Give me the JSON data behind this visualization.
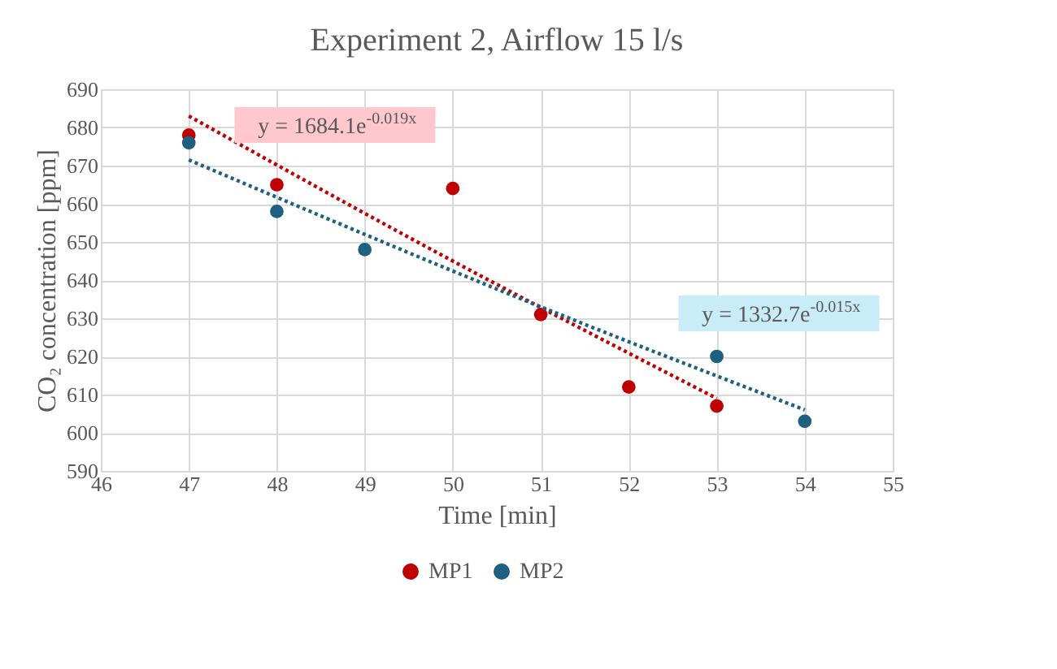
{
  "chart_data": {
    "type": "scatter",
    "title": "Experiment 2, Airflow 15 l/s",
    "xlabel": "Time [min]",
    "ylabel": "CO₂ concentration [ppm]",
    "series": [
      {
        "name": "MP1",
        "color": "#c00000",
        "x": [
          47,
          48,
          50,
          51,
          52,
          53
        ],
        "values": [
          678,
          665,
          664,
          631,
          612,
          607
        ]
      },
      {
        "name": "MP2",
        "color": "#1f6080",
        "x": [
          47,
          48,
          49,
          53,
          54
        ],
        "values": [
          676,
          658,
          648,
          620,
          603
        ]
      },
      {
        "type": "line",
        "color": "#c00000",
        "line_style": "dotted",
        "marker": "none",
        "x": [
          47,
          50,
          53
        ],
        "values": [
          683,
          645,
          609
        ]
      },
      {
        "type": "line",
        "color": "#1f6080",
        "line_style": "dotted",
        "marker": "none",
        "x": [
          47,
          51,
          54
        ],
        "values": [
          671.5,
          633,
          606
        ]
      }
    ],
    "annotations": [
      "y = 1684.1e$^{-0.019x}$",
      "y = 1332.7e$^{-0.015x}$"
    ],
    "xlim": [
      46,
      55
    ],
    "xticks": [
      46,
      47,
      48,
      49,
      50,
      51,
      52,
      53,
      54,
      55
    ],
    "ylim": [
      590,
      690
    ],
    "yticks": [
      590,
      600,
      610,
      620,
      630,
      640,
      650,
      660,
      670,
      680,
      690
    ],
    "grid": true,
    "legend": "bottom",
    "marker": "circle"
  }
}
